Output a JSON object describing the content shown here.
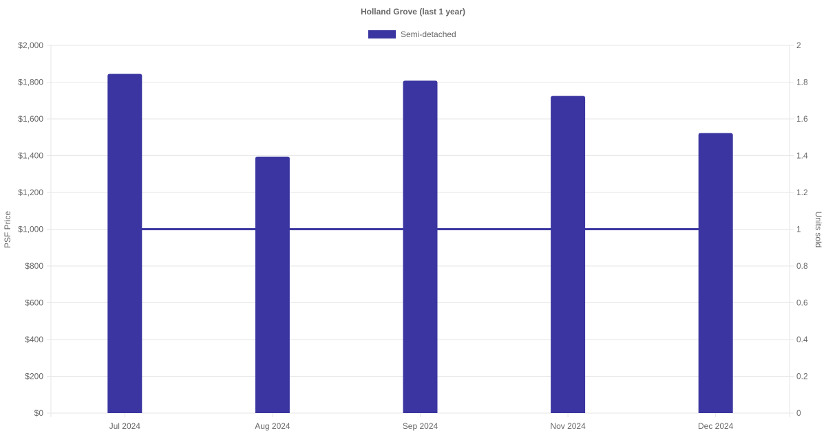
{
  "chart_data": {
    "type": "bar",
    "title": "Holland Grove (last 1 year)",
    "categories": [
      "Jul 2024",
      "Aug 2024",
      "Sep 2024",
      "Nov 2024",
      "Dec 2024"
    ],
    "series": [
      {
        "name": "Semi-detached",
        "type": "bar",
        "axis": "left",
        "values": [
          1845,
          1395,
          1808,
          1725,
          1523
        ]
      },
      {
        "type": "line",
        "axis": "right",
        "values": [
          1,
          1,
          1,
          1,
          1
        ]
      }
    ],
    "ylabel": "PSF Price",
    "ylim": [
      0,
      2000
    ],
    "yticks": [
      "$0",
      "$200",
      "$400",
      "$600",
      "$800",
      "$1,000",
      "$1,200",
      "$1,400",
      "$1,600",
      "$1,800",
      "$2,000"
    ],
    "y2label": "Units sold",
    "y2lim": [
      0,
      2
    ],
    "y2ticks": [
      "0",
      "0.2",
      "0.4",
      "0.6",
      "0.8",
      "1",
      "1.2",
      "1.4",
      "1.6",
      "1.8",
      "2"
    ],
    "grid": true,
    "legend": "top-center",
    "colors": {
      "bar": "#3a35a0",
      "line": "#3a35a0",
      "grid": "#e6e6e6",
      "text": "#666666"
    }
  }
}
